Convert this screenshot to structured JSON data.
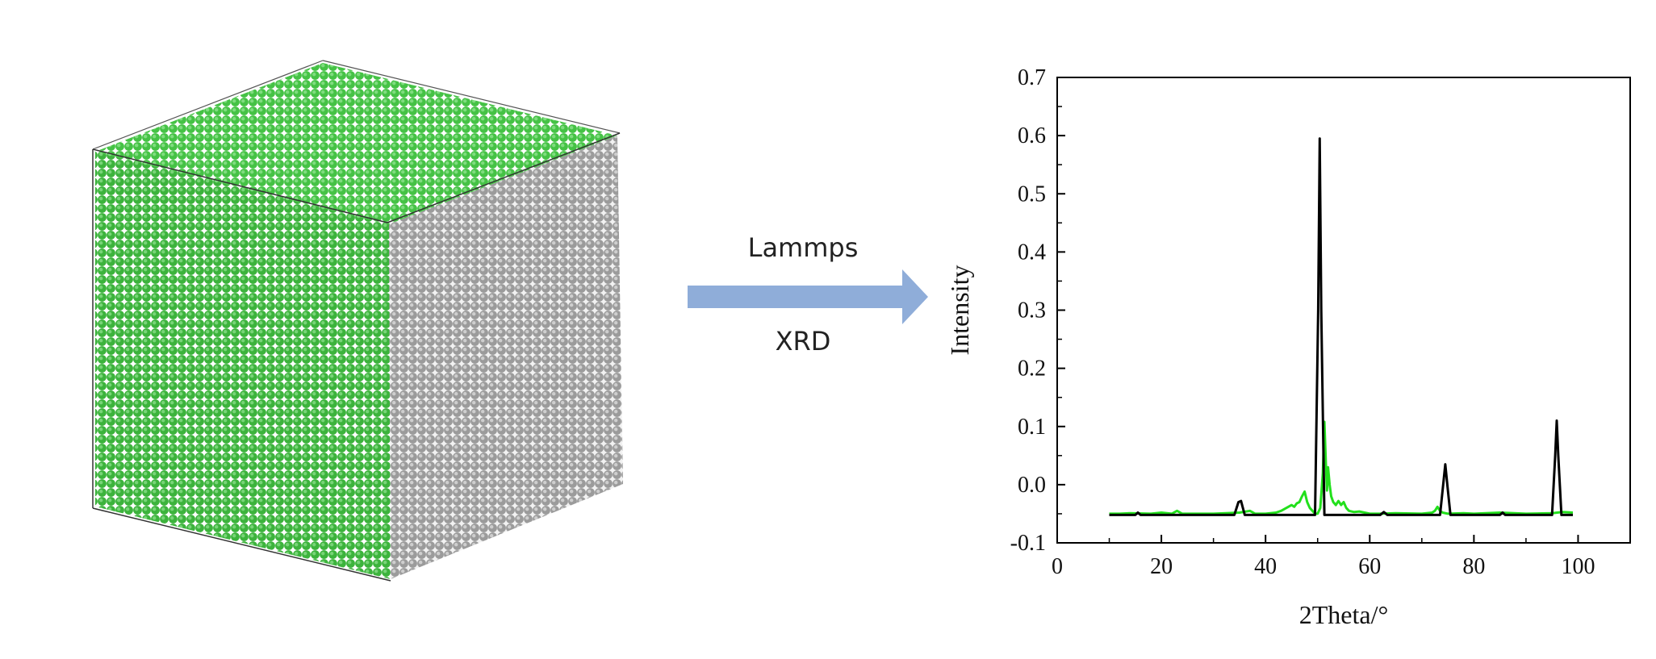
{
  "diagram": {
    "arrow_label_top": "Lammps",
    "arrow_label_bottom": "XRD"
  },
  "colors": {
    "top_face": "#3fbf3f",
    "front_face": "#3cb33c",
    "side_face": "#a9a9a9",
    "arrow": "#8fadd9",
    "series_black": "#000000",
    "series_green": "#22e01c"
  },
  "chart_data": {
    "type": "line",
    "title": "",
    "xlabel": "2Theta/°",
    "ylabel": "Intensity",
    "xlim": [
      0,
      110
    ],
    "ylim": [
      -0.1,
      0.7
    ],
    "xticks": [
      0,
      20,
      40,
      60,
      80,
      100
    ],
    "yticks": [
      -0.1,
      0.0,
      0.1,
      0.2,
      0.3,
      0.4,
      0.5,
      0.6,
      0.7
    ],
    "legend": "none",
    "grid": false,
    "series": [
      {
        "color": "black",
        "x": [
          10,
          15,
          15.5,
          16,
          34,
          34.8,
          35.3,
          36,
          49.5,
          50.1,
          50.4,
          50.7,
          51.3,
          62,
          62.7,
          63.4,
          73.5,
          74.1,
          74.5,
          74.9,
          75.5,
          85,
          85.5,
          86,
          95,
          95.6,
          95.9,
          96.2,
          96.8,
          99
        ],
        "y": [
          -0.052,
          -0.052,
          -0.048,
          -0.052,
          -0.052,
          -0.03,
          -0.028,
          -0.052,
          -0.052,
          0.3,
          0.595,
          0.3,
          -0.052,
          -0.052,
          -0.047,
          -0.052,
          -0.052,
          0.0,
          0.035,
          0.0,
          -0.052,
          -0.052,
          -0.048,
          -0.052,
          -0.052,
          0.05,
          0.11,
          0.05,
          -0.052,
          -0.052
        ]
      },
      {
        "color": "green",
        "x": [
          10,
          12,
          14,
          18,
          20,
          22,
          23,
          24,
          26,
          30,
          35,
          37,
          38,
          40,
          42,
          43,
          44,
          45,
          45.5,
          46,
          46.5,
          47,
          47.5,
          48,
          48.5,
          49,
          49.5,
          50,
          50.5,
          51,
          51.3,
          51.6,
          51.8,
          52,
          52.3,
          52.6,
          53,
          53.5,
          54,
          54.5,
          55,
          55.5,
          56,
          57,
          58,
          60,
          62,
          65,
          70,
          72,
          72.5,
          73,
          73.5,
          74,
          75,
          78,
          80,
          85,
          90,
          95,
          97,
          99
        ],
        "y": [
          -0.05,
          -0.05,
          -0.049,
          -0.05,
          -0.048,
          -0.05,
          -0.045,
          -0.05,
          -0.05,
          -0.05,
          -0.048,
          -0.045,
          -0.05,
          -0.05,
          -0.048,
          -0.045,
          -0.04,
          -0.035,
          -0.038,
          -0.032,
          -0.03,
          -0.02,
          -0.012,
          -0.03,
          -0.04,
          -0.045,
          -0.05,
          -0.05,
          -0.04,
          0.02,
          0.108,
          0.03,
          -0.01,
          0.03,
          0.0,
          -0.02,
          -0.03,
          -0.035,
          -0.028,
          -0.035,
          -0.03,
          -0.04,
          -0.045,
          -0.047,
          -0.046,
          -0.05,
          -0.05,
          -0.049,
          -0.05,
          -0.048,
          -0.045,
          -0.038,
          -0.045,
          -0.048,
          -0.05,
          -0.049,
          -0.05,
          -0.048,
          -0.05,
          -0.049,
          -0.047,
          -0.048
        ]
      }
    ]
  }
}
